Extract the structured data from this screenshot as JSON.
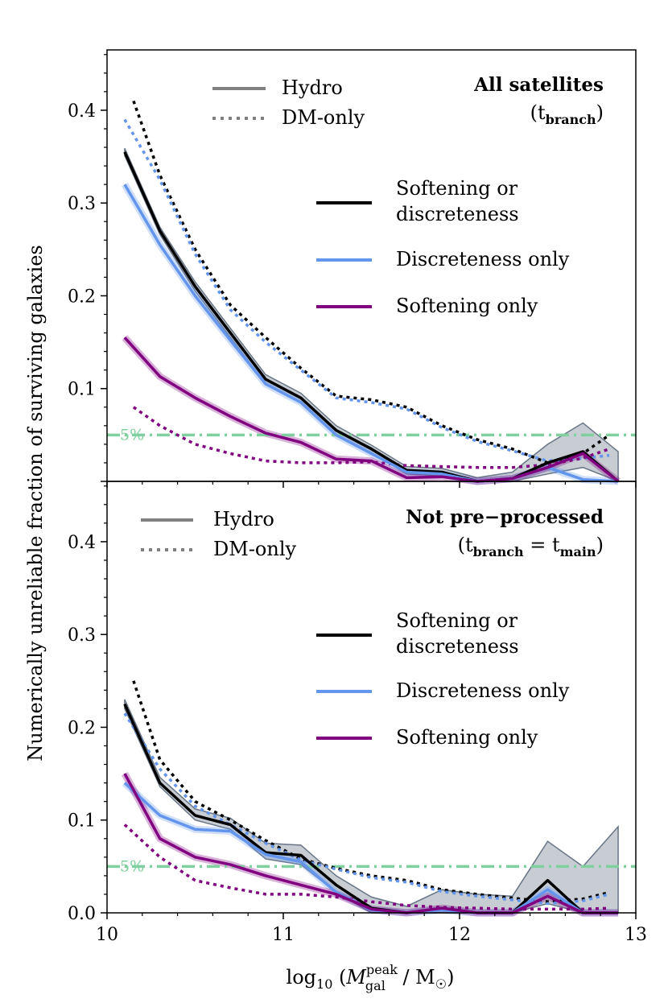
{
  "chart_data": {
    "type": "line",
    "ylabel": "Numerically unreliable fraction of surviving galaxies",
    "xlabel": "log10 (M_gal^peak / M☉)",
    "xlabel_parts": {
      "func": "log",
      "sub10": "10",
      "open": " (",
      "M": "M",
      "sup": "peak",
      "sub": "gal",
      "mid": " / M",
      "sun": "☉",
      "close": ")"
    },
    "xlim": [
      10,
      13
    ],
    "ylim": [
      0,
      0.465
    ],
    "x_ticks": [
      "10",
      "11",
      "12",
      "13"
    ],
    "y_ticks": [
      "0.0",
      "0.1",
      "0.2",
      "0.3",
      "0.4"
    ],
    "reference_line": {
      "value": 0.05,
      "label": "5%",
      "color": "#7fcf9f"
    },
    "colors": {
      "softening_or_discreteness": "#000000",
      "discreteness_only": "#6495ed",
      "softening_only": "#800080",
      "band_gray": "#4a5a6e"
    },
    "legend_style": {
      "hydro": "Hydro",
      "dmonly": "DM-only"
    },
    "panels": [
      {
        "title_main": "All satellites",
        "title_sub": "(t",
        "title_sub_idx": "branch",
        "title_sub_close": ")",
        "legend": [
          "Softening or",
          "discreteness",
          "Discreteness only",
          "Softening only"
        ],
        "series": [
          {
            "name": "Softening or discreteness (Hydro)",
            "style": "solid",
            "color": "#000000",
            "x": [
              10.1,
              10.3,
              10.5,
              10.7,
              10.9,
              11.1,
              11.3,
              11.5,
              11.7,
              11.9,
              12.1,
              12.3,
              12.5,
              12.7,
              12.9
            ],
            "y": [
              0.355,
              0.27,
              0.21,
              0.16,
              0.11,
              0.09,
              0.055,
              0.035,
              0.012,
              0.01,
              0.0,
              0.003,
              0.02,
              0.032,
              0.0
            ],
            "band": {
              "color": "#4a5a6e",
              "lo": [
                0.351,
                0.266,
                0.205,
                0.155,
                0.105,
                0.085,
                0.05,
                0.031,
                0.008,
                0.006,
                0.0,
                0.0,
                0.008,
                0.015,
                0.0
              ],
              "hi": [
                0.359,
                0.274,
                0.215,
                0.165,
                0.115,
                0.095,
                0.06,
                0.039,
                0.016,
                0.014,
                0.004,
                0.01,
                0.04,
                0.063,
                0.032
              ]
            }
          },
          {
            "name": "Discreteness only (Hydro)",
            "style": "solid",
            "color": "#6495ed",
            "x": [
              10.1,
              10.3,
              10.5,
              10.7,
              10.9,
              11.1,
              11.3,
              11.5,
              11.7,
              11.9,
              12.1,
              12.3,
              12.5,
              12.7,
              12.9
            ],
            "y": [
              0.32,
              0.255,
              0.2,
              0.152,
              0.105,
              0.085,
              0.05,
              0.03,
              0.01,
              0.008,
              0.0,
              0.003,
              0.015,
              0.002,
              0.0
            ]
          },
          {
            "name": "Softening only (Hydro)",
            "style": "solid",
            "color": "#800080",
            "x": [
              10.1,
              10.3,
              10.5,
              10.7,
              10.9,
              11.1,
              11.3,
              11.5,
              11.7,
              11.9,
              12.1,
              12.3,
              12.5,
              12.7,
              12.9
            ],
            "y": [
              0.155,
              0.113,
              0.09,
              0.07,
              0.052,
              0.042,
              0.024,
              0.022,
              0.004,
              0.005,
              0.0,
              0.003,
              0.015,
              0.03,
              0.0
            ]
          },
          {
            "name": "Softening or discreteness (DM-only)",
            "style": "dotted",
            "color": "#000000",
            "x": [
              10.15,
              10.3,
              10.5,
              10.7,
              10.9,
              11.1,
              11.3,
              11.5,
              11.7,
              11.9,
              12.1,
              12.3,
              12.5,
              12.7,
              12.85
            ],
            "y": [
              0.41,
              0.33,
              0.25,
              0.19,
              0.155,
              0.122,
              0.092,
              0.088,
              0.08,
              0.06,
              0.045,
              0.035,
              0.02,
              0.03,
              0.05
            ]
          },
          {
            "name": "Discreteness only (DM-only)",
            "style": "dotted",
            "color": "#6495ed",
            "x": [
              10.1,
              10.3,
              10.5,
              10.7,
              10.9,
              11.1,
              11.3,
              11.5,
              11.7,
              11.9,
              12.1,
              12.3,
              12.5,
              12.7,
              12.85
            ],
            "y": [
              0.39,
              0.325,
              0.245,
              0.185,
              0.15,
              0.12,
              0.09,
              0.085,
              0.078,
              0.058,
              0.043,
              0.033,
              0.022,
              0.025,
              0.028
            ]
          },
          {
            "name": "Softening only (DM-only)",
            "style": "dotted",
            "color": "#800080",
            "x": [
              10.15,
              10.3,
              10.5,
              10.7,
              10.9,
              11.1,
              11.3,
              11.5,
              11.7,
              11.9,
              12.1,
              12.3,
              12.5,
              12.7,
              12.85
            ],
            "y": [
              0.08,
              0.06,
              0.04,
              0.03,
              0.022,
              0.02,
              0.02,
              0.021,
              0.017,
              0.016,
              0.015,
              0.015,
              0.018,
              0.025,
              0.035
            ]
          }
        ]
      },
      {
        "title_main": "Not pre−processed",
        "title_sub": "(t",
        "title_sub_idx": "branch",
        "title_sub_eq": " = t",
        "title_sub_idx2": "main",
        "title_sub_close": ")",
        "legend": [
          "Softening or",
          "discreteness",
          "Discreteness only",
          "Softening only"
        ],
        "series": [
          {
            "name": "Softening or discreteness (Hydro)",
            "style": "solid",
            "color": "#000000",
            "x": [
              10.1,
              10.3,
              10.5,
              10.7,
              10.9,
              11.1,
              11.3,
              11.5,
              11.7,
              11.9,
              12.1,
              12.3,
              12.5,
              12.7,
              12.9
            ],
            "y": [
              0.225,
              0.14,
              0.105,
              0.095,
              0.065,
              0.062,
              0.03,
              0.005,
              0.0,
              0.005,
              0.0,
              0.0,
              0.035,
              0.0,
              0.0
            ],
            "band": {
              "color": "#4a5a6e",
              "lo": [
                0.22,
                0.136,
                0.1,
                0.09,
                0.058,
                0.052,
                0.022,
                0.0,
                0.0,
                0.0,
                0.0,
                0.0,
                0.01,
                0.0,
                0.0
              ],
              "hi": [
                0.23,
                0.146,
                0.112,
                0.102,
                0.075,
                0.073,
                0.04,
                0.017,
                0.007,
                0.025,
                0.02,
                0.018,
                0.077,
                0.05,
                0.093
              ]
            }
          },
          {
            "name": "Discreteness only (Hydro)",
            "style": "solid",
            "color": "#6495ed",
            "x": [
              10.1,
              10.3,
              10.5,
              10.7,
              10.9,
              11.1,
              11.3,
              11.5,
              11.7,
              11.9,
              12.1,
              12.3,
              12.5,
              12.7,
              12.9
            ],
            "y": [
              0.14,
              0.105,
              0.09,
              0.088,
              0.063,
              0.055,
              0.022,
              0.003,
              0.0,
              0.003,
              0.0,
              0.0,
              0.025,
              0.0,
              0.0
            ]
          },
          {
            "name": "Softening only (Hydro)",
            "style": "solid",
            "color": "#800080",
            "x": [
              10.1,
              10.3,
              10.5,
              10.7,
              10.9,
              11.1,
              11.3,
              11.5,
              11.7,
              11.9,
              12.1,
              12.3,
              12.5,
              12.7,
              12.9
            ],
            "y": [
              0.15,
              0.08,
              0.06,
              0.052,
              0.04,
              0.03,
              0.02,
              0.004,
              0.0,
              0.005,
              0.0,
              0.0,
              0.018,
              0.0,
              0.0
            ]
          },
          {
            "name": "Softening or discreteness (DM-only)",
            "style": "dotted",
            "color": "#000000",
            "x": [
              10.15,
              10.3,
              10.5,
              10.7,
              10.9,
              11.1,
              11.3,
              11.5,
              11.7,
              11.9,
              12.1,
              12.3,
              12.5,
              12.7,
              12.85
            ],
            "y": [
              0.25,
              0.165,
              0.12,
              0.1,
              0.078,
              0.058,
              0.048,
              0.04,
              0.035,
              0.025,
              0.02,
              0.016,
              0.012,
              0.015,
              0.022
            ]
          },
          {
            "name": "Discreteness only (DM-only)",
            "style": "dotted",
            "color": "#6495ed",
            "x": [
              10.1,
              10.3,
              10.5,
              10.7,
              10.9,
              11.1,
              11.3,
              11.5,
              11.7,
              11.9,
              12.1,
              12.3,
              12.5,
              12.7,
              12.85
            ],
            "y": [
              0.215,
              0.155,
              0.115,
              0.095,
              0.075,
              0.057,
              0.047,
              0.038,
              0.033,
              0.023,
              0.018,
              0.014,
              0.01,
              0.013,
              0.02
            ]
          },
          {
            "name": "Softening only (DM-only)",
            "style": "dotted",
            "color": "#800080",
            "x": [
              10.1,
              10.3,
              10.5,
              10.7,
              10.9,
              11.1,
              11.3,
              11.5,
              11.7,
              11.9,
              12.1,
              12.3,
              12.5,
              12.7,
              12.85
            ],
            "y": [
              0.095,
              0.06,
              0.035,
              0.027,
              0.02,
              0.02,
              0.017,
              0.012,
              0.008,
              0.006,
              0.005,
              0.004,
              0.004,
              0.004,
              0.005
            ]
          }
        ]
      }
    ]
  }
}
